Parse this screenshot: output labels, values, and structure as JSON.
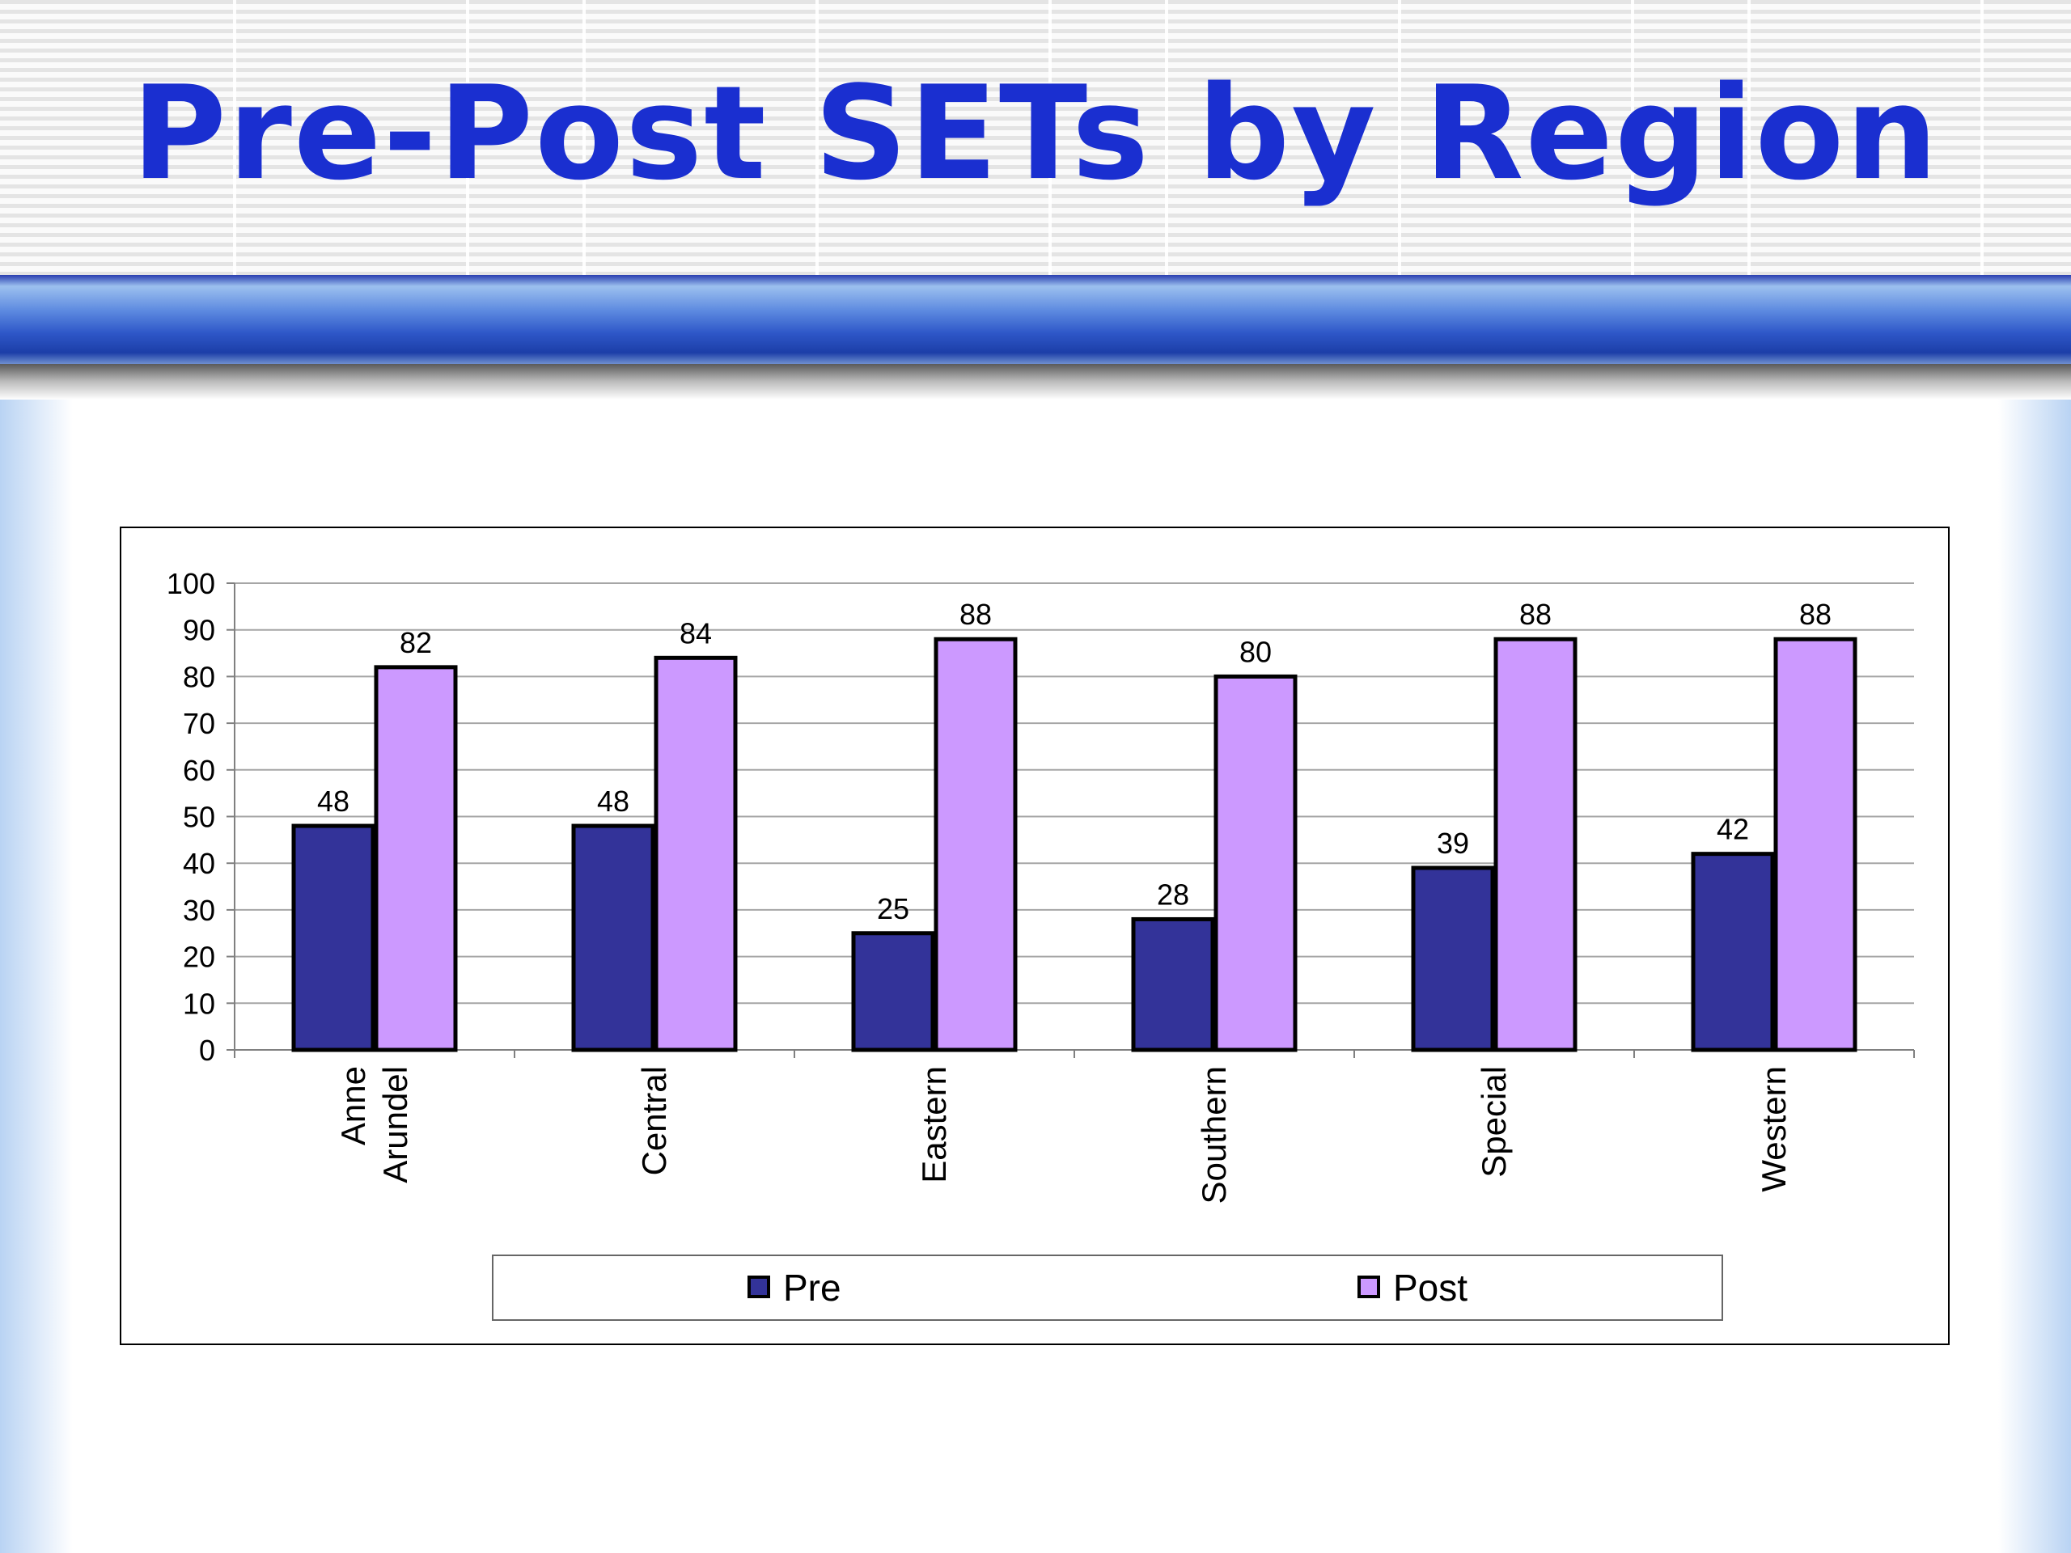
{
  "slide": {
    "title": "Pre-Post SETs by Region"
  },
  "colors": {
    "title": "#1a2fd0",
    "pre": "#333399",
    "post": "#cc99ff"
  },
  "chart_data": {
    "type": "bar",
    "title": "",
    "xlabel": "",
    "ylabel": "",
    "categories": [
      "Anne Arundel",
      "Central",
      "Eastern",
      "Southern",
      "Special",
      "Western"
    ],
    "series": [
      {
        "name": "Pre",
        "values": [
          48,
          48,
          25,
          28,
          39,
          42
        ]
      },
      {
        "name": "Post",
        "values": [
          82,
          84,
          88,
          80,
          88,
          88
        ]
      }
    ],
    "ylim": [
      0,
      100
    ],
    "yticks": [
      0,
      10,
      20,
      30,
      40,
      50,
      60,
      70,
      80,
      90,
      100
    ],
    "grid": true,
    "data_labels": true,
    "legend_position": "bottom"
  }
}
